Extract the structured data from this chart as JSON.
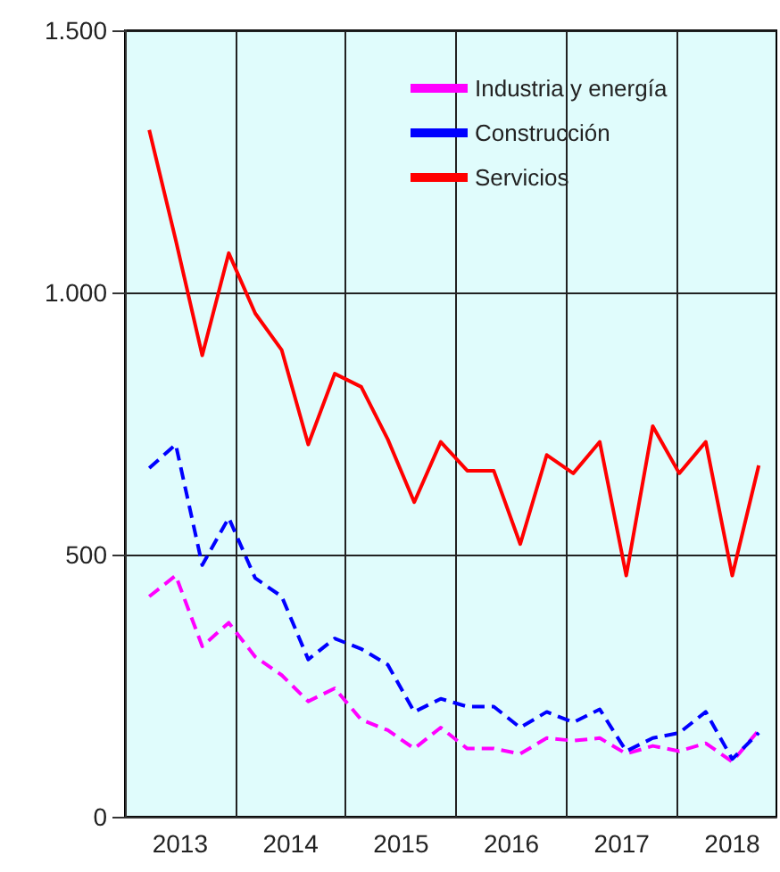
{
  "chart_data": {
    "type": "line",
    "x": [
      2013.22,
      2013.46,
      2013.7,
      2013.94,
      2014.18,
      2014.42,
      2014.66,
      2014.9,
      2015.14,
      2015.38,
      2015.62,
      2015.86,
      2016.1,
      2016.34,
      2016.58,
      2016.82,
      2017.06,
      2017.3,
      2017.54,
      2017.78,
      2018.02,
      2018.26,
      2018.5,
      2018.74
    ],
    "series": [
      {
        "name": "Industria y energía",
        "color": "#ff00ff",
        "line_style": "dashed",
        "values": [
          420,
          460,
          325,
          370,
          305,
          270,
          220,
          245,
          185,
          165,
          130,
          170,
          130,
          130,
          120,
          150,
          145,
          150,
          120,
          135,
          125,
          140,
          105,
          165
        ]
      },
      {
        "name": "Construcción",
        "color": "#0000ff",
        "line_style": "dashed",
        "values": [
          665,
          710,
          480,
          570,
          455,
          420,
          300,
          340,
          320,
          290,
          200,
          225,
          210,
          210,
          170,
          200,
          180,
          205,
          125,
          150,
          160,
          200,
          110,
          160
        ]
      },
      {
        "name": "Servicios",
        "color": "#ff0000",
        "line_style": "solid",
        "values": [
          1310,
          1100,
          880,
          1075,
          960,
          890,
          710,
          845,
          820,
          720,
          600,
          715,
          660,
          660,
          520,
          690,
          655,
          715,
          460,
          745,
          655,
          715,
          460,
          670
        ]
      }
    ],
    "xlim": [
      2013,
      2018.9
    ],
    "xticks": [
      {
        "value": 2013.5,
        "label": "2013"
      },
      {
        "value": 2014,
        "label": null
      },
      {
        "value": 2014.5,
        "label": "2014"
      },
      {
        "value": 2015,
        "label": null
      },
      {
        "value": 2015.5,
        "label": "2015"
      },
      {
        "value": 2016,
        "label": null
      },
      {
        "value": 2016.5,
        "label": "2016"
      },
      {
        "value": 2017,
        "label": null
      },
      {
        "value": 2017.5,
        "label": "2017"
      },
      {
        "value": 2018,
        "label": null
      },
      {
        "value": 2018.5,
        "label": "2018"
      }
    ],
    "ylim": [
      0,
      1500
    ],
    "yticks": [
      0,
      500,
      {
        "value": 1000,
        "label": "1.000"
      },
      {
        "value": 1500,
        "label": "1.500"
      }
    ],
    "grid": true,
    "legend": "top right",
    "marker": "none"
  }
}
